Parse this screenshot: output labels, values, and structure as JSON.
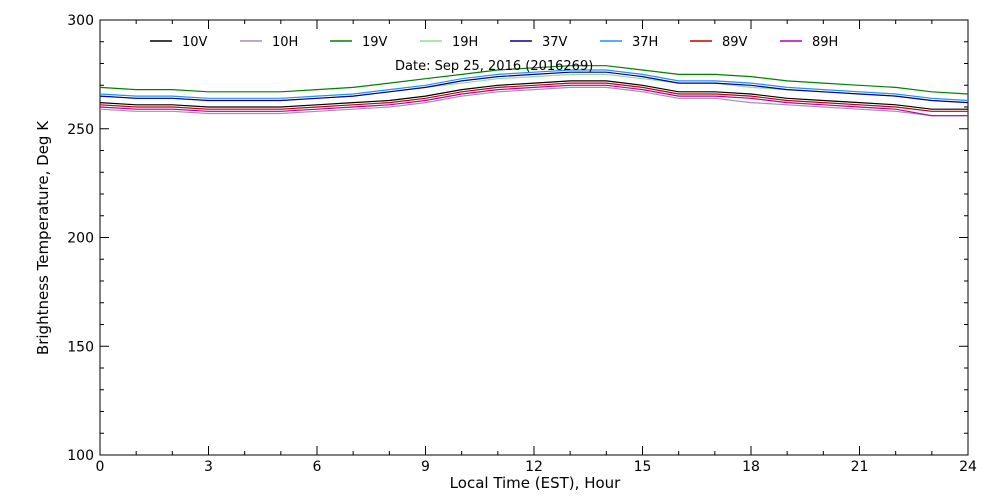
{
  "chart_data": {
    "type": "line",
    "annotation": "Date: Sep 25, 2016 (2016269)",
    "xlabel": "Local Time (EST), Hour",
    "ylabel": "Brightness Temperature, Deg K",
    "xlim": [
      0,
      24
    ],
    "ylim": [
      100,
      300
    ],
    "x_ticks": [
      0,
      3,
      6,
      9,
      12,
      15,
      18,
      21,
      24
    ],
    "x_tick_labels": [
      "0",
      "3",
      "6",
      "9",
      "12",
      "15",
      "18",
      "21",
      "24"
    ],
    "y_ticks": [
      100,
      150,
      200,
      250,
      300
    ],
    "y_tick_labels": [
      "100",
      "150",
      "200",
      "250",
      "300"
    ],
    "grid": false,
    "legend_position": "top",
    "x": [
      0,
      1,
      2,
      3,
      4,
      5,
      6,
      7,
      8,
      9,
      10,
      11,
      12,
      13,
      14,
      15,
      16,
      17,
      18,
      19,
      20,
      21,
      22,
      23,
      24
    ],
    "series": [
      {
        "name": "10V",
        "color": "#000000",
        "values": [
          262,
          261,
          261,
          260,
          260,
          260,
          261,
          262,
          263,
          265,
          268,
          270,
          271,
          272,
          272,
          270,
          267,
          267,
          266,
          264,
          263,
          262,
          261,
          259,
          259
        ]
      },
      {
        "name": "10H",
        "color": "#a48fb0",
        "values": [
          259,
          258,
          258,
          257,
          257,
          257,
          258,
          259,
          260,
          262,
          265,
          267,
          268,
          269,
          269,
          267,
          264,
          264,
          262,
          261,
          260,
          259,
          258,
          256,
          256
        ]
      },
      {
        "name": "19V",
        "color": "#008000",
        "values": [
          269,
          268,
          268,
          267,
          267,
          267,
          268,
          269,
          271,
          273,
          275,
          277,
          278,
          279,
          279,
          277,
          275,
          275,
          274,
          272,
          271,
          270,
          269,
          267,
          266
        ]
      },
      {
        "name": "19H",
        "color": "#8ee08e",
        "values": [
          265,
          264,
          264,
          263,
          263,
          263,
          264,
          265,
          267,
          269,
          271,
          273,
          274,
          275,
          275,
          273,
          271,
          271,
          269,
          268,
          267,
          266,
          265,
          263,
          262
        ]
      },
      {
        "name": "37V",
        "color": "#00008b",
        "values": [
          265,
          264,
          264,
          263,
          263,
          263,
          264,
          265,
          267,
          269,
          272,
          274,
          275,
          276,
          276,
          274,
          271,
          271,
          270,
          268,
          267,
          266,
          265,
          263,
          262
        ]
      },
      {
        "name": "37H",
        "color": "#1e90ff",
        "values": [
          266,
          265,
          265,
          264,
          264,
          264,
          265,
          266,
          268,
          270,
          273,
          275,
          276,
          277,
          277,
          275,
          272,
          272,
          271,
          269,
          268,
          267,
          266,
          264,
          263
        ]
      },
      {
        "name": "89V",
        "color": "#c00000",
        "values": [
          261,
          260,
          260,
          259,
          259,
          259,
          260,
          261,
          262,
          264,
          267,
          269,
          270,
          271,
          271,
          269,
          266,
          266,
          265,
          263,
          262,
          261,
          260,
          258,
          258
        ]
      },
      {
        "name": "89H",
        "color": "#b000b0",
        "values": [
          260,
          259,
          259,
          258,
          258,
          258,
          259,
          260,
          261,
          263,
          266,
          268,
          269,
          270,
          270,
          268,
          265,
          265,
          264,
          262,
          261,
          260,
          259,
          256,
          256
        ]
      }
    ]
  }
}
